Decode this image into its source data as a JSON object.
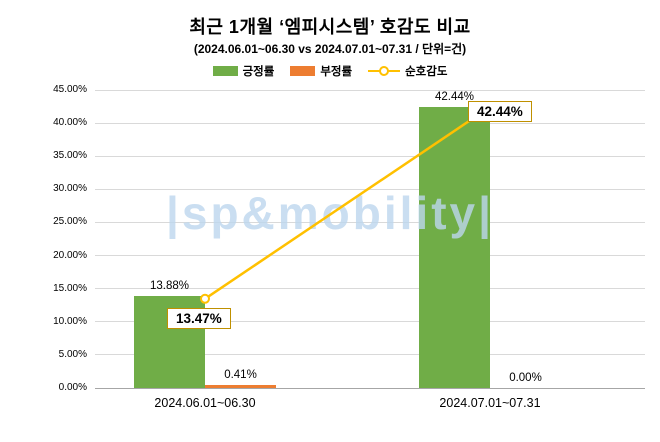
{
  "watermark": "|sp&mobility|",
  "chart_data": {
    "type": "bar",
    "title": "최근 1개월 ‘엠피시스템’ 호감도 비교",
    "subtitle": "(2024.06.01~06.30 vs 2024.07.01~07.31 / 단위=건)",
    "categories": [
      "2024.06.01~06.30",
      "2024.07.01~07.31"
    ],
    "series": [
      {
        "key": "positive-rate",
        "name": "긍정률",
        "type": "bar",
        "color": "#70AD47",
        "values": [
          13.88,
          42.44
        ],
        "labels": [
          "13.88%",
          "42.44%"
        ]
      },
      {
        "key": "negative-rate",
        "name": "부정률",
        "type": "bar",
        "color": "#ED7D31",
        "values": [
          0.41,
          0.0
        ],
        "labels": [
          "0.41%",
          "0.00%"
        ]
      },
      {
        "key": "net-favorability",
        "name": "순호감도",
        "type": "line",
        "color": "#FFC000",
        "values": [
          13.47,
          42.44
        ],
        "labels": [
          "13.47%",
          "42.44%"
        ]
      }
    ],
    "ylim": [
      0,
      45
    ],
    "ytick_step": 5,
    "yticks": [
      "0.00%",
      "5.00%",
      "10.00%",
      "15.00%",
      "20.00%",
      "25.00%",
      "30.00%",
      "35.00%",
      "40.00%",
      "45.00%"
    ],
    "grid": true,
    "legend_position": "top",
    "xlabel": "",
    "ylabel": ""
  }
}
